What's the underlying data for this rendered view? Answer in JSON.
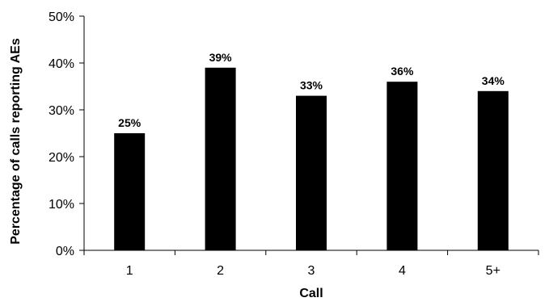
{
  "chart_data": {
    "type": "bar",
    "categories": [
      "1",
      "2",
      "3",
      "4",
      "5+"
    ],
    "values": [
      25,
      39,
      33,
      36,
      34
    ],
    "data_labels": [
      "25%",
      "39%",
      "33%",
      "36%",
      "34%"
    ],
    "y_ticks": [
      "0%",
      "10%",
      "20%",
      "30%",
      "40%",
      "50%"
    ],
    "ylim": [
      0,
      50
    ],
    "xlabel": "Call",
    "ylabel": "Percentage of calls reporting AEs",
    "grid": false,
    "legend": "none",
    "bar_color": "#000000"
  }
}
